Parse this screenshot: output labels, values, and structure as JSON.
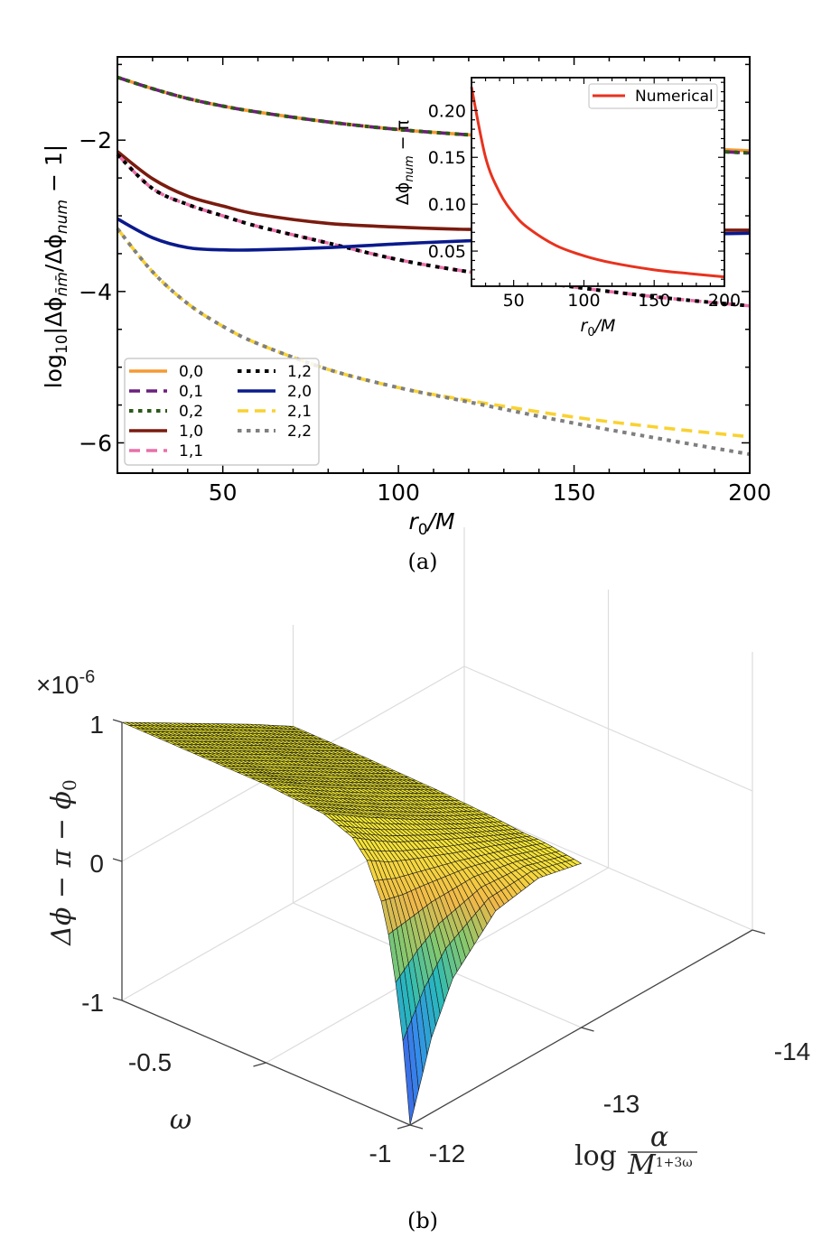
{
  "chart_data": [
    {
      "type": "line",
      "panel_label": "(a)",
      "xlabel": {
        "main": "r",
        "sub": "0",
        "rest": "/M"
      },
      "ylabel": {
        "pre": "log",
        "sub1": "10",
        "mid": "|Δϕ",
        "sub2": "n̄m̄",
        "mid2": "/Δϕ",
        "sub3": "num",
        "post": " − 1|"
      },
      "xlim": [
        20,
        200
      ],
      "ylim": [
        -6.4,
        -0.9
      ],
      "xticks": [
        50,
        100,
        150,
        200
      ],
      "xtick_labels": [
        "50",
        "100",
        "150",
        "200"
      ],
      "yticks": [
        -2,
        -4,
        -6
      ],
      "ytick_labels": [
        "−2",
        "−4",
        "−6"
      ],
      "grid": false,
      "legend_placement": "bottom-left",
      "x": [
        20,
        30,
        40,
        50,
        60,
        80,
        100,
        120,
        150,
        175,
        200
      ],
      "series": [
        {
          "name": "0,0",
          "color": "#f59a32",
          "style": "solid",
          "y": [
            -1.17,
            -1.32,
            -1.45,
            -1.55,
            -1.63,
            -1.76,
            -1.86,
            -1.93,
            -2.02,
            -2.09,
            -2.14
          ]
        },
        {
          "name": "0,1",
          "color": "#6b1f7c",
          "style": "dashed",
          "y": [
            -1.17,
            -1.32,
            -1.45,
            -1.55,
            -1.63,
            -1.76,
            -1.86,
            -1.93,
            -2.02,
            -2.11,
            -2.17
          ]
        },
        {
          "name": "0,2",
          "color": "#2b5a1a",
          "style": "dotted",
          "y": [
            -1.17,
            -1.32,
            -1.45,
            -1.55,
            -1.63,
            -1.76,
            -1.86,
            -1.93,
            -2.02,
            -2.11,
            -2.17
          ]
        },
        {
          "name": "1,0",
          "color": "#7a1b0f",
          "style": "solid",
          "y": [
            -2.15,
            -2.51,
            -2.74,
            -2.87,
            -2.98,
            -3.1,
            -3.15,
            -3.18,
            -3.19,
            -3.19,
            -3.19
          ]
        },
        {
          "name": "1,1",
          "color": "#ea6fa8",
          "style": "dashed",
          "y": [
            -2.19,
            -2.64,
            -2.85,
            -3.0,
            -3.14,
            -3.36,
            -3.58,
            -3.74,
            -3.94,
            -4.08,
            -4.19
          ]
        },
        {
          "name": "1,2",
          "color": "#000000",
          "style": "dotted",
          "y": [
            -2.19,
            -2.64,
            -2.85,
            -3.0,
            -3.14,
            -3.36,
            -3.58,
            -3.74,
            -3.94,
            -4.08,
            -4.19
          ]
        },
        {
          "name": "2,0",
          "color": "#0a1a8c",
          "style": "solid",
          "y": [
            -3.04,
            -3.29,
            -3.42,
            -3.45,
            -3.45,
            -3.42,
            -3.37,
            -3.33,
            -3.28,
            -3.25,
            -3.23
          ]
        },
        {
          "name": "2,1",
          "color": "#f9d232",
          "style": "dashed",
          "y": [
            -3.17,
            -3.74,
            -4.16,
            -4.46,
            -4.69,
            -5.03,
            -5.27,
            -5.44,
            -5.66,
            -5.8,
            -5.92
          ]
        },
        {
          "name": "2,2",
          "color": "#7f7f7f",
          "style": "dotted",
          "y": [
            -3.17,
            -3.74,
            -4.16,
            -4.46,
            -4.69,
            -5.03,
            -5.27,
            -5.46,
            -5.74,
            -5.95,
            -6.15
          ]
        }
      ],
      "inset": {
        "type": "line",
        "xlabel": {
          "main": "r",
          "sub": "0",
          "rest": "/M"
        },
        "ylabel": {
          "pre": "Δϕ",
          "sub": "num",
          "post": " − π"
        },
        "xlim": [
          20,
          200
        ],
        "ylim": [
          0.0125,
          0.235
        ],
        "xticks": [
          50,
          100,
          150,
          200
        ],
        "xtick_labels": [
          "50",
          "100",
          "150",
          "200"
        ],
        "yticks": [
          0.05,
          0.1,
          0.15,
          0.2
        ],
        "ytick_labels": [
          "0.05",
          "0.10",
          "0.15",
          "0.20"
        ],
        "legend_placement": "top-right",
        "x": [
          20,
          30,
          40,
          50,
          60,
          80,
          100,
          120,
          150,
          175,
          200
        ],
        "series": [
          {
            "name": "Numerical",
            "color": "#e8321e",
            "style": "solid",
            "y": [
              0.225,
              0.15,
              0.1125,
              0.09,
              0.075,
              0.056,
              0.045,
              0.0375,
              0.03,
              0.026,
              0.0225
            ]
          }
        ]
      }
    },
    {
      "type": "surface",
      "panel_label": "(b)",
      "xlabel": "ω",
      "ylabel": {
        "pre": "log ",
        "num": "α",
        "den": "M",
        "sup": "1+3ω"
      },
      "zlabel": {
        "pre": "Δϕ − π − ϕ",
        "sub": "0"
      },
      "z_multiplier": {
        "base": "×10",
        "exp": "-6"
      },
      "xlim": [
        -1,
        0
      ],
      "ylim": [
        -14,
        -12
      ],
      "zlim": [
        -1,
        1
      ],
      "xticks": [
        "-0.5",
        "-1"
      ],
      "yticks": [
        "-12",
        "-13",
        "-14"
      ],
      "zticks": [
        "1",
        "0",
        "-1"
      ],
      "colormap": "parula",
      "omega": [
        -1,
        -0.97,
        -0.93,
        -0.9,
        -0.85,
        -0.8,
        -0.7,
        -0.5,
        -0.25,
        0
      ],
      "log_alpha": [
        -12,
        -12.25,
        -12.5,
        -13,
        -13.5,
        -14
      ],
      "z": [
        [
          -1.0,
          -0.3,
          0.26,
          0.52,
          0.77,
          0.89,
          0.97,
          1.0,
          1.0,
          1.0
        ],
        [
          -0.46,
          -0.06,
          0.3,
          0.48,
          0.67,
          0.78,
          0.87,
          0.91,
          0.91,
          0.91
        ],
        [
          -0.12,
          0.11,
          0.34,
          0.46,
          0.6,
          0.68,
          0.77,
          0.81,
          0.82,
          0.82
        ],
        [
          0.19,
          0.27,
          0.36,
          0.41,
          0.47,
          0.52,
          0.58,
          0.62,
          0.64,
          0.64
        ],
        [
          0.25,
          0.28,
          0.3,
          0.32,
          0.35,
          0.37,
          0.4,
          0.44,
          0.45,
          0.46
        ],
        [
          0.18,
          0.19,
          0.2,
          0.21,
          0.22,
          0.22,
          0.24,
          0.26,
          0.27,
          0.27
        ]
      ]
    }
  ]
}
